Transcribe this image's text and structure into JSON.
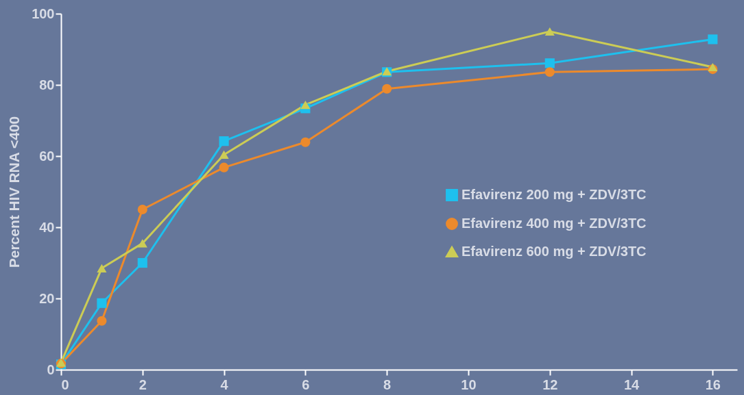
{
  "chart_data": {
    "type": "line",
    "ylabel": "Percent HIV RNA <400",
    "x": [
      0,
      1,
      2,
      4,
      6,
      8,
      12,
      16
    ],
    "xlim": [
      0,
      16.6
    ],
    "xticks": [
      0,
      2,
      4,
      6,
      8,
      10,
      12,
      14,
      16
    ],
    "ylim": [
      0,
      100
    ],
    "yticks": [
      0,
      20,
      40,
      60,
      80,
      100
    ],
    "grid": false,
    "legend": "right",
    "line_style": "solid",
    "series": [
      {
        "name": "Efavirenz 200 mg + ZDV/3TC",
        "color": "#1ec0ee",
        "marker": "square",
        "values": [
          1.5,
          18.7,
          30,
          64.2,
          73.4,
          83.6,
          86.1,
          92.8
        ]
      },
      {
        "name": "Efavirenz 400 mg + ZDV/3TC",
        "color": "#ec8a2c",
        "marker": "circle",
        "values": [
          1.7,
          13.7,
          45,
          56.8,
          63.9,
          78.9,
          83.6,
          84.4
        ]
      },
      {
        "name": "Efavirenz 600 mg + ZDV/3TC",
        "color": "#cccc55",
        "marker": "triangle",
        "values": [
          2,
          28.5,
          35.5,
          60.4,
          74.4,
          83.8,
          95,
          85
        ]
      }
    ]
  }
}
